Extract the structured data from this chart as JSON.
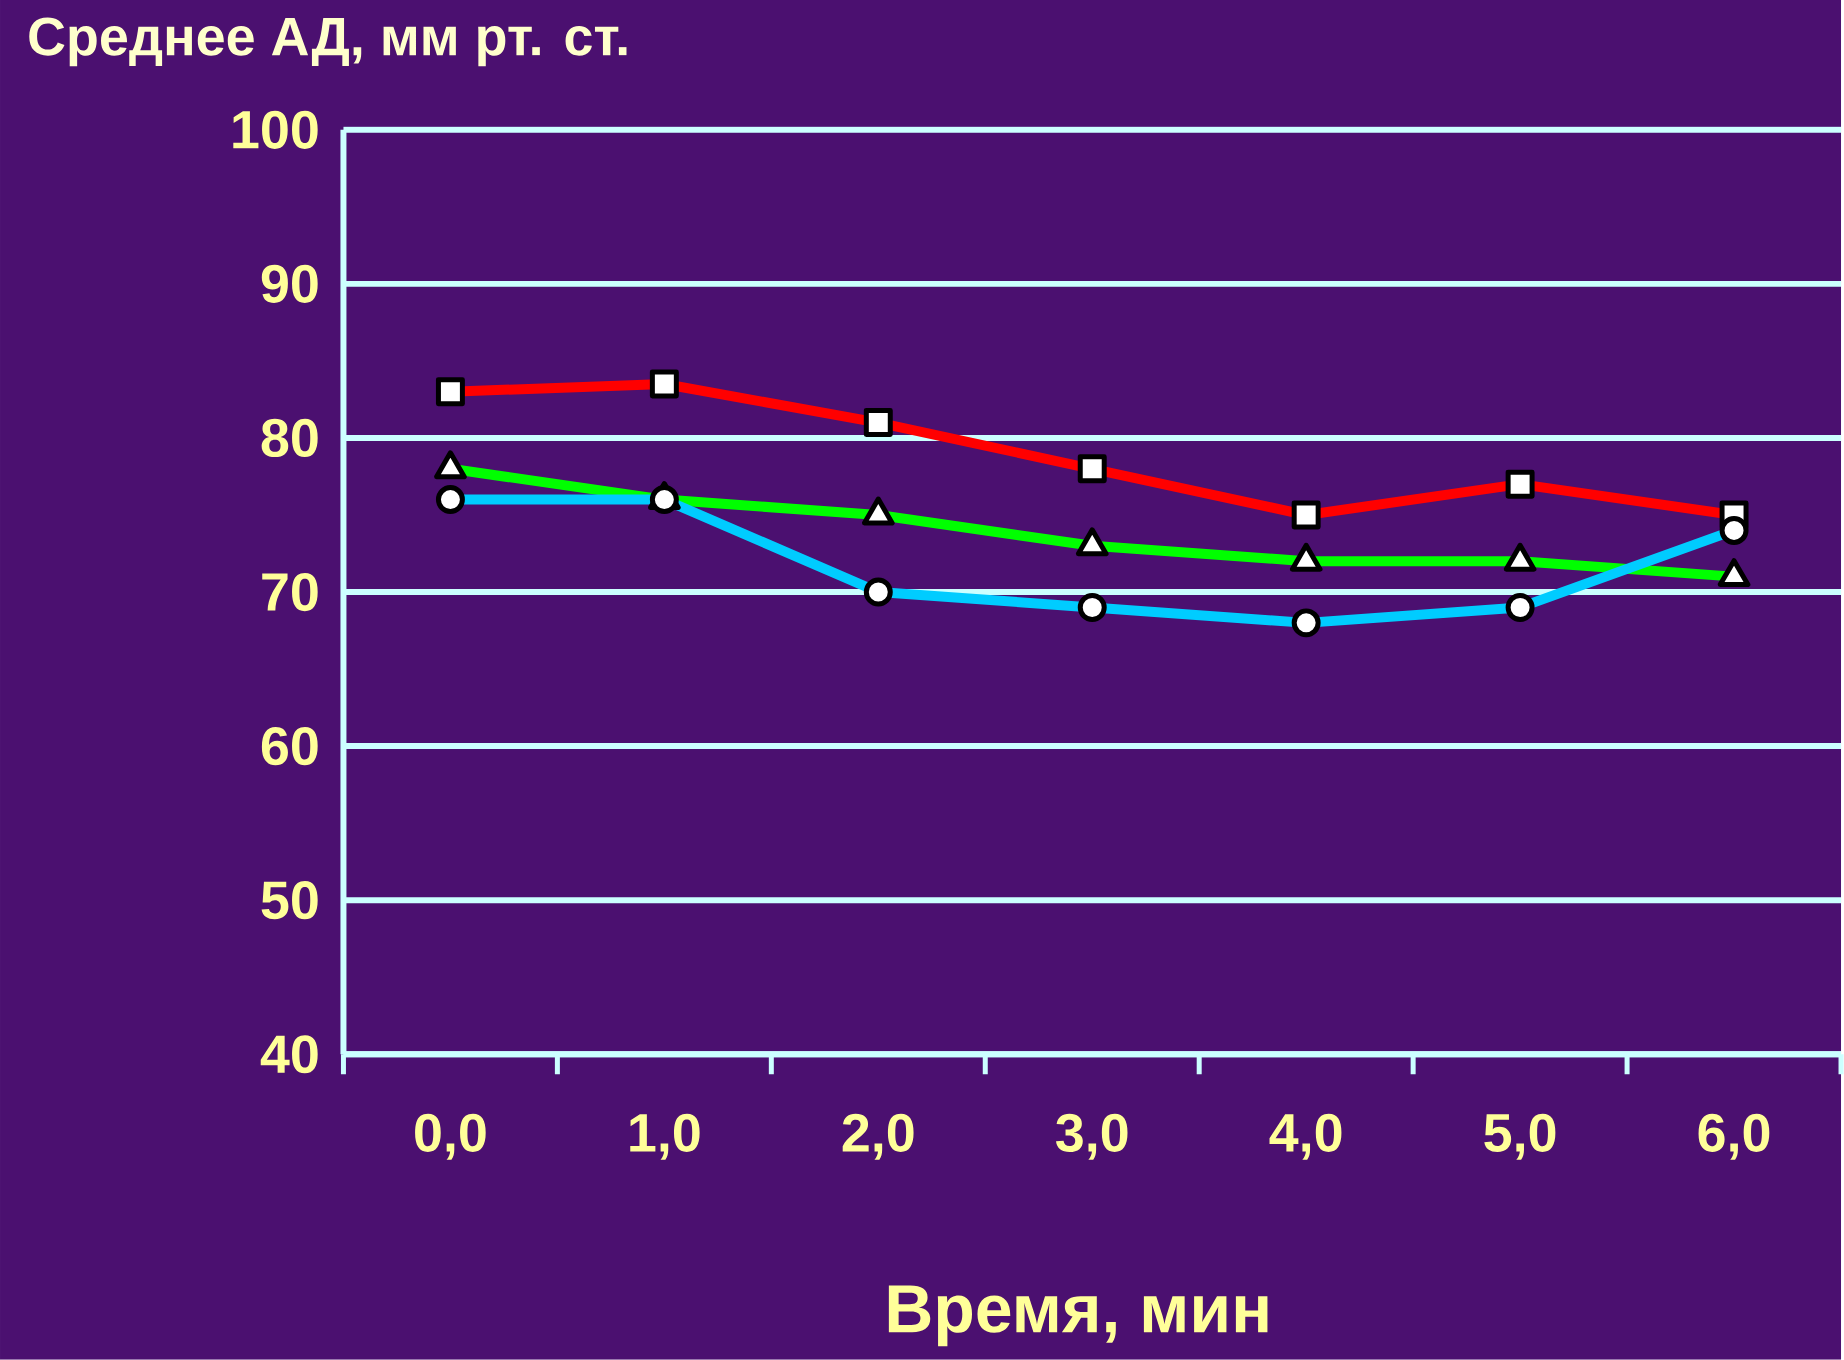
{
  "chart_data": {
    "type": "line",
    "ylabel": "Среднее АД, мм рт. ст.",
    "xlabel": "Время, мин",
    "categories": [
      "0,0",
      "1,0",
      "2,0",
      "3,0",
      "4,0",
      "5,0",
      "6,0"
    ],
    "ylim": [
      40,
      100
    ],
    "yticks": [
      40,
      50,
      60,
      70,
      80,
      90,
      100
    ],
    "grid": "y",
    "line_style": "solid",
    "series": [
      {
        "color": "#ff0000",
        "marker": "square",
        "values": [
          83,
          83.5,
          81,
          78,
          75,
          77,
          75
        ]
      },
      {
        "color": "#00ff00",
        "marker": "triangle",
        "values": [
          78,
          76,
          75,
          73,
          72,
          72,
          71
        ]
      },
      {
        "color": "#00ccff",
        "marker": "circle",
        "values": [
          76,
          76,
          70,
          69,
          68,
          69,
          74
        ]
      }
    ]
  }
}
